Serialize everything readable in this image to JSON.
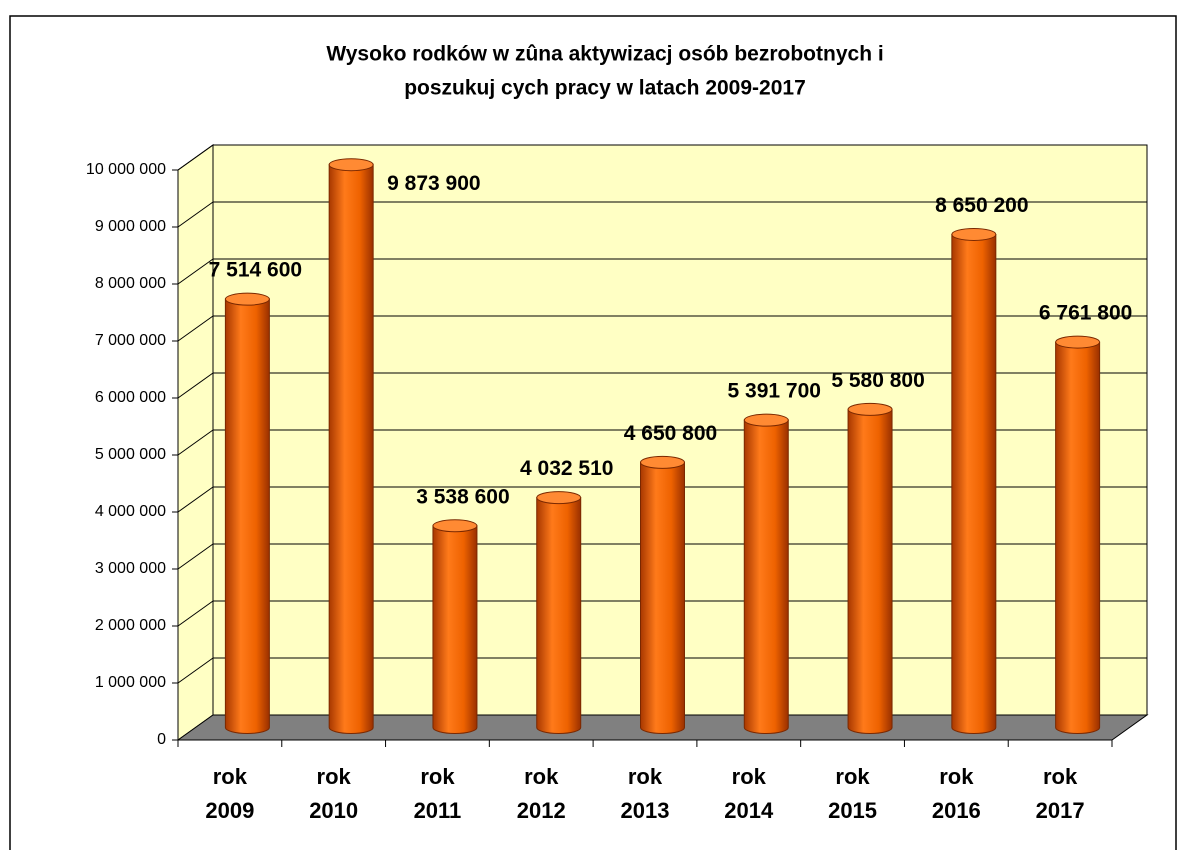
{
  "chart_data": {
    "type": "bar",
    "title": [
      "Wysoko      rodków w zûna aktywizacj   osób bezrobotnych i",
      "poszukuj  cych pracy w latach 2009-2017"
    ],
    "categories": [
      "rok 2009",
      "rok 2010",
      "rok 2011",
      "rok 2012",
      "rok 2013",
      "rok 2014",
      "rok 2015",
      "rok 2016",
      "rok 2017"
    ],
    "values": [
      7514600,
      9873900,
      3538600,
      4032510,
      4650800,
      5391700,
      5580800,
      8650200,
      6761800
    ],
    "value_labels": [
      "7 514 600",
      "9 873 900",
      "3 538 600",
      "4 032 510",
      "4 650 800",
      "5 391 700",
      "5 580 800",
      "8 650 200",
      "6 761 800"
    ],
    "color": "#ff6a00",
    "ylim": [
      0,
      10000000
    ],
    "yticks": [
      0,
      {
        "value": 1000000,
        "label": "1 000 000"
      },
      {
        "value": 2000000,
        "label": "2 000 000"
      },
      {
        "value": 3000000,
        "label": "3 000 000"
      },
      {
        "value": 4000000,
        "label": "4 000 000"
      },
      {
        "value": 5000000,
        "label": "5 000 000"
      },
      {
        "value": 6000000,
        "label": "6 000 000"
      },
      {
        "value": 7000000,
        "label": "7 000 000"
      },
      {
        "value": 8000000,
        "label": "8 000 000"
      },
      {
        "value": 9000000,
        "label": "9 000 000"
      },
      {
        "value": 10000000,
        "label": "10 000 000"
      }
    ],
    "grid": true
  }
}
